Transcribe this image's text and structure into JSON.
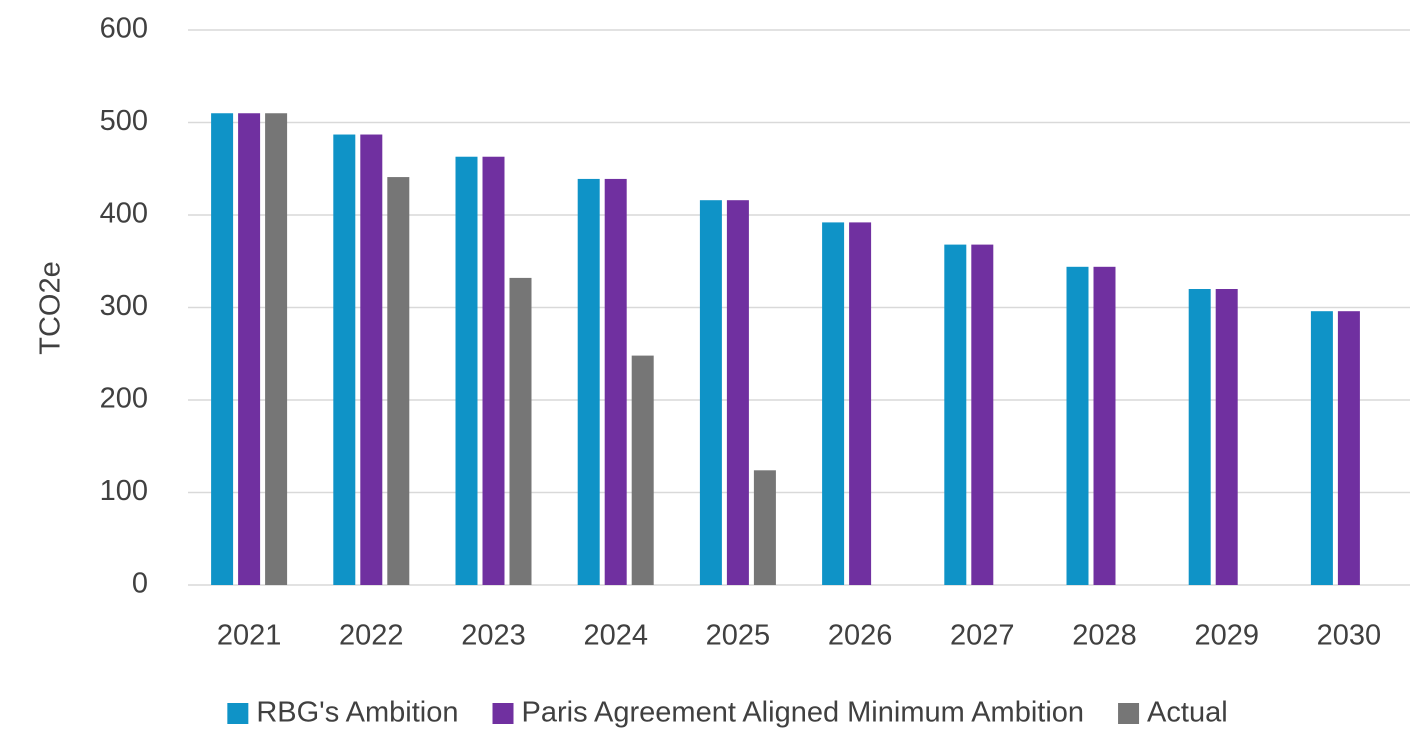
{
  "chart_data": {
    "type": "bar",
    "y_axis_label": "TCO2e",
    "categories": [
      "2021",
      "2022",
      "2023",
      "2024",
      "2025",
      "2026",
      "2027",
      "2028",
      "2029",
      "2030"
    ],
    "series": [
      {
        "name": "RBG's Ambition",
        "color": "#0f93c7",
        "values": [
          510,
          487,
          463,
          439,
          416,
          392,
          368,
          344,
          320,
          296
        ]
      },
      {
        "name": "Paris Agreement Aligned Minimum Ambition",
        "color": "#7030a0",
        "values": [
          510,
          487,
          463,
          439,
          416,
          392,
          368,
          344,
          320,
          296
        ]
      },
      {
        "name": "Actual",
        "color": "#767676",
        "values": [
          510,
          441,
          332,
          248,
          124,
          null,
          null,
          null,
          null,
          null
        ]
      }
    ],
    "ylim": [
      0,
      600
    ],
    "yticks": [
      0,
      100,
      200,
      300,
      400,
      500,
      600
    ],
    "grid": true,
    "legend": "bottom"
  }
}
